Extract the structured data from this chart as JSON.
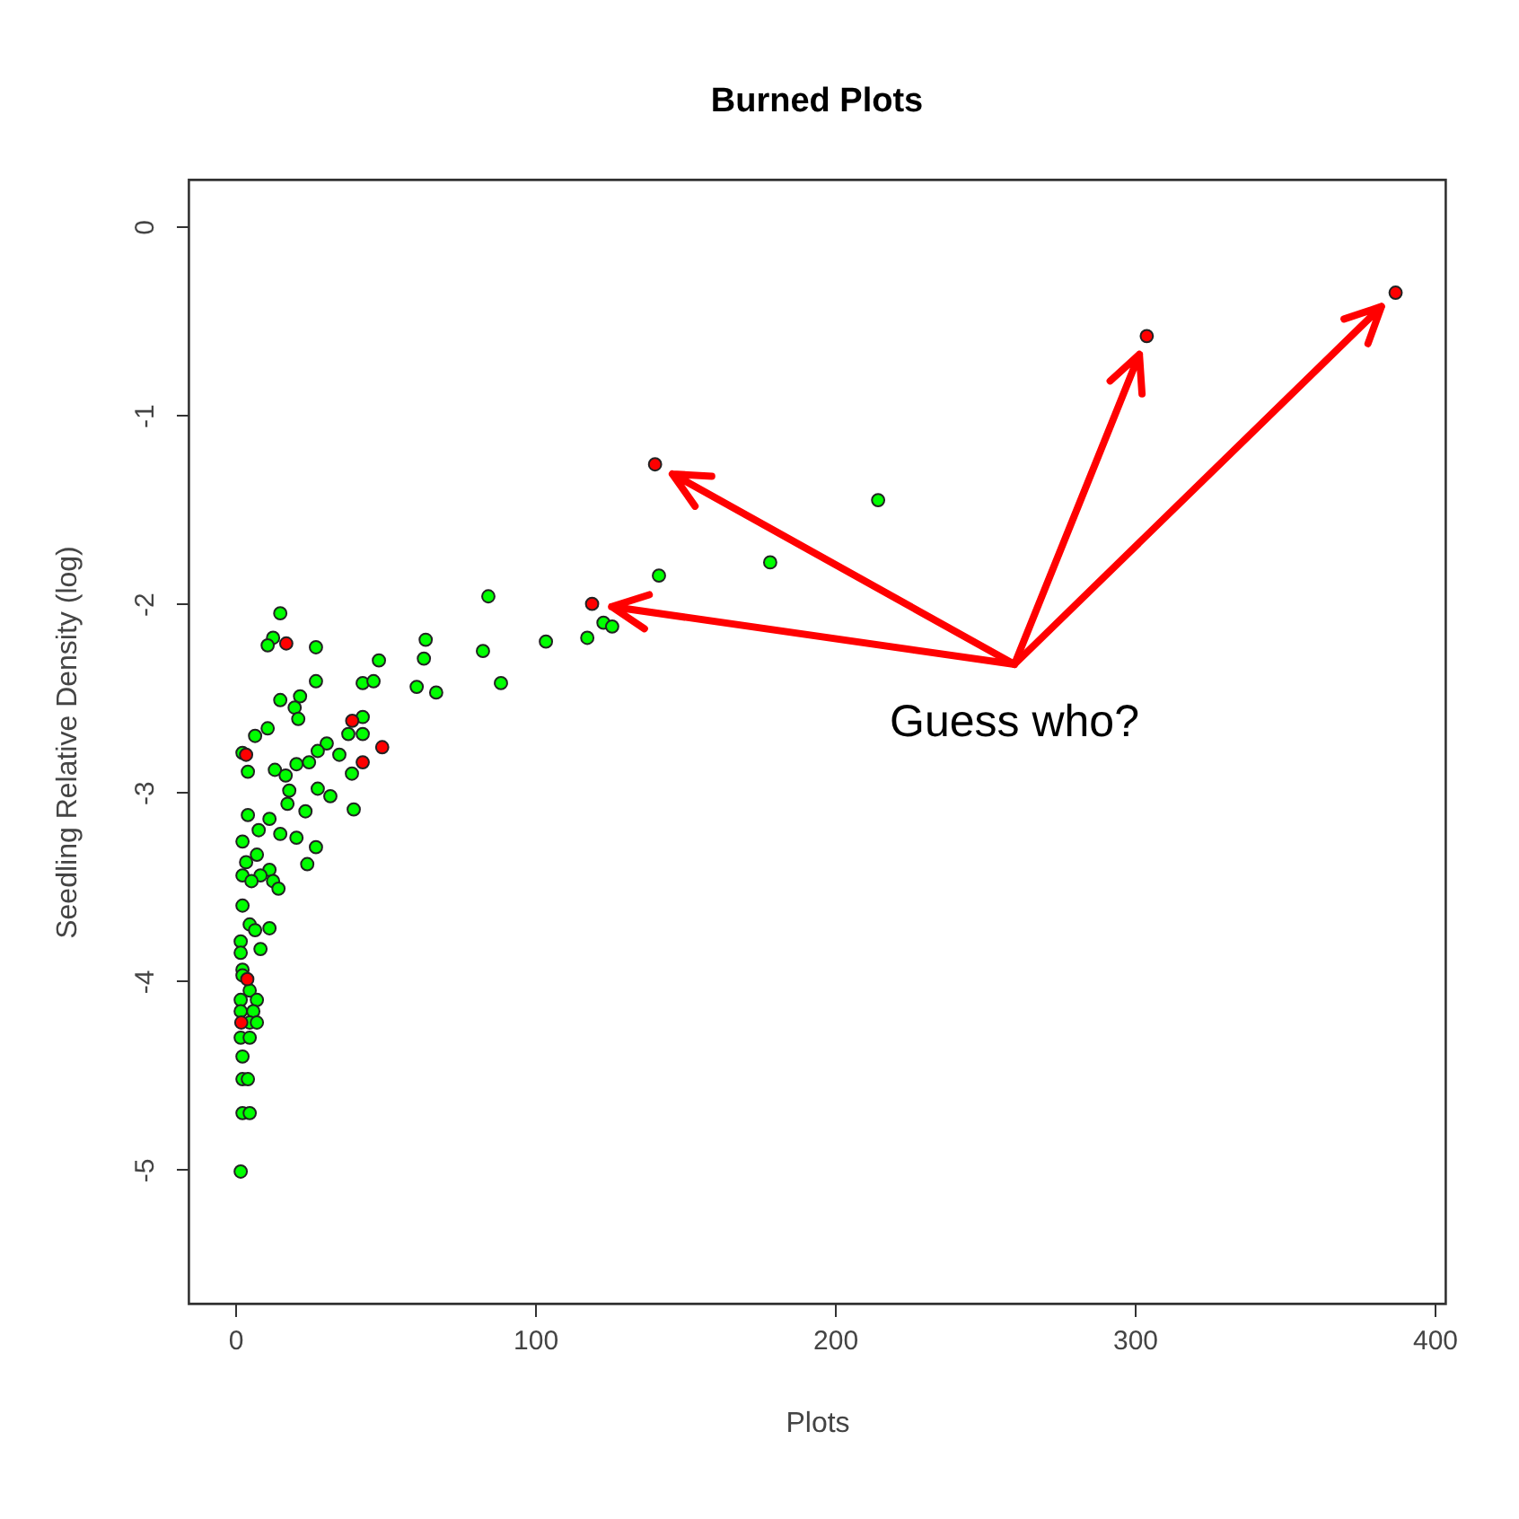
{
  "chart_data": {
    "type": "scatter",
    "title": "Burned Plots",
    "xlabel": "Plots",
    "ylabel": "Seedling Relative Density (log)",
    "xlim": [
      -15.6,
      403.6
    ],
    "ylim": [
      -5.71,
      0.25
    ],
    "xticks": [
      0,
      100,
      200,
      300,
      400
    ],
    "yticks": [
      0,
      -1,
      -2,
      -3,
      -4,
      -5
    ],
    "grid": false,
    "marker": "circle",
    "annotations": [
      "Guess who?"
    ],
    "series": [
      {
        "color": "#00ff00",
        "x": [
          84.4,
          15,
          12.6,
          10.8,
          26.9,
          63.5,
          47.9,
          62.9,
          82.6,
          42.5,
          46.1,
          26.9,
          60.5,
          67,
          88.6,
          15,
          21.6,
          19.8,
          21,
          42.5,
          37.7,
          42.5,
          10.8,
          6.6,
          30.5,
          27.5,
          34.7,
          24.6,
          20.4,
          2.4,
          4.2,
          13.2,
          16.8,
          38.9,
          18,
          27.5,
          31.7,
          17.4,
          39.5,
          23.4,
          4.2,
          11.4,
          7.8,
          15,
          20.4,
          2.4,
          26.9,
          7.2,
          3.6,
          24,
          11.4,
          8.4,
          2.4,
          5.4,
          12.6,
          14.4,
          2.4,
          4.8,
          11.4,
          6.6,
          1.8,
          8.4,
          1.8,
          2.4,
          2.4,
          4.8,
          7.2,
          1.8,
          6,
          1.8,
          4.8,
          7.2,
          1.8,
          4.8,
          2.4,
          2.4,
          4.2,
          2.4,
          4.8,
          1.8,
          141.3,
          178.4,
          214.4,
          103.6,
          117.4,
          122.8,
          125.7
        ],
        "values": [
          -1.96,
          -2.05,
          -2.18,
          -2.22,
          -2.23,
          -2.19,
          -2.3,
          -2.29,
          -2.25,
          -2.42,
          -2.41,
          -2.41,
          -2.44,
          -2.47,
          -2.42,
          -2.51,
          -2.49,
          -2.55,
          -2.61,
          -2.6,
          -2.69,
          -2.69,
          -2.66,
          -2.7,
          -2.74,
          -2.78,
          -2.8,
          -2.84,
          -2.85,
          -2.79,
          -2.89,
          -2.88,
          -2.91,
          -2.9,
          -2.99,
          -2.98,
          -3.02,
          -3.06,
          -3.09,
          -3.1,
          -3.12,
          -3.14,
          -3.2,
          -3.22,
          -3.24,
          -3.26,
          -3.29,
          -3.33,
          -3.37,
          -3.38,
          -3.41,
          -3.44,
          -3.44,
          -3.47,
          -3.47,
          -3.51,
          -3.6,
          -3.7,
          -3.72,
          -3.73,
          -3.79,
          -3.83,
          -3.85,
          -3.94,
          -3.97,
          -4.05,
          -4.1,
          -4.1,
          -4.16,
          -4.16,
          -4.22,
          -4.22,
          -4.3,
          -4.3,
          -4.4,
          -4.52,
          -4.52,
          -4.7,
          -4.7,
          -5.01,
          -1.85,
          -1.78,
          -1.45,
          -2.2,
          -2.18,
          -2.1,
          -2.12
        ]
      },
      {
        "color": "#ff0000",
        "x": [
          140,
          304,
          387,
          119,
          17,
          49,
          39,
          42.5,
          3.6,
          4,
          2
        ],
        "values": [
          -1.26,
          -0.58,
          -0.35,
          -2.0,
          -2.21,
          -2.76,
          -2.62,
          -2.84,
          -2.8,
          -3.99,
          -4.22
        ]
      }
    ]
  }
}
